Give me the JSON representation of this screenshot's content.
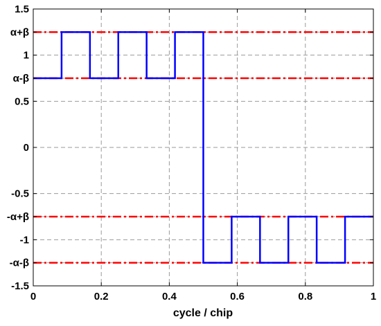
{
  "chart_data": {
    "type": "line",
    "title": "",
    "xlabel": "cycle / chip",
    "ylabel": "",
    "xlim": [
      0,
      1
    ],
    "ylim": [
      -1.5,
      1.5
    ],
    "grid": true,
    "legend": "none",
    "xticks": [
      {
        "value": 0,
        "label": "0"
      },
      {
        "value": 0.2,
        "label": "0.2"
      },
      {
        "value": 0.4,
        "label": "0.4"
      },
      {
        "value": 0.6,
        "label": "0.6"
      },
      {
        "value": 0.8,
        "label": "0.8"
      },
      {
        "value": 1,
        "label": "1"
      }
    ],
    "yticks": [
      {
        "value": 1.5,
        "label": "1.5"
      },
      {
        "value": 1.25,
        "label": "α+β"
      },
      {
        "value": 1,
        "label": "1"
      },
      {
        "value": 0.75,
        "label": "α-β"
      },
      {
        "value": 0.5,
        "label": "0.5"
      },
      {
        "value": 0,
        "label": "0"
      },
      {
        "value": -0.5,
        "label": "-0.5"
      },
      {
        "value": -0.75,
        "label": "-α+β"
      },
      {
        "value": -1,
        "label": "-1"
      },
      {
        "value": -1.25,
        "label": "-α-β"
      },
      {
        "value": -1.5,
        "label": "-1.5"
      }
    ],
    "reference_lines": [
      {
        "y": 1.25,
        "color": "#ff0000",
        "style": "dash-dot"
      },
      {
        "y": 0.75,
        "color": "#ff0000",
        "style": "dash-dot"
      },
      {
        "y": -0.75,
        "color": "#ff0000",
        "style": "dash-dot"
      },
      {
        "y": -1.25,
        "color": "#ff0000",
        "style": "dash-dot"
      }
    ],
    "series": [
      {
        "color": "#0000ff",
        "step": true,
        "x": [
          0,
          0.0833,
          0.1667,
          0.25,
          0.3333,
          0.4167,
          0.5,
          0.5833,
          0.6667,
          0.75,
          0.8333,
          0.9167,
          1
        ],
        "values": [
          0.75,
          1.25,
          0.75,
          1.25,
          0.75,
          1.25,
          -1.25,
          -0.75,
          -1.25,
          -0.75,
          -1.25,
          -0.75,
          -0.75
        ]
      }
    ]
  }
}
